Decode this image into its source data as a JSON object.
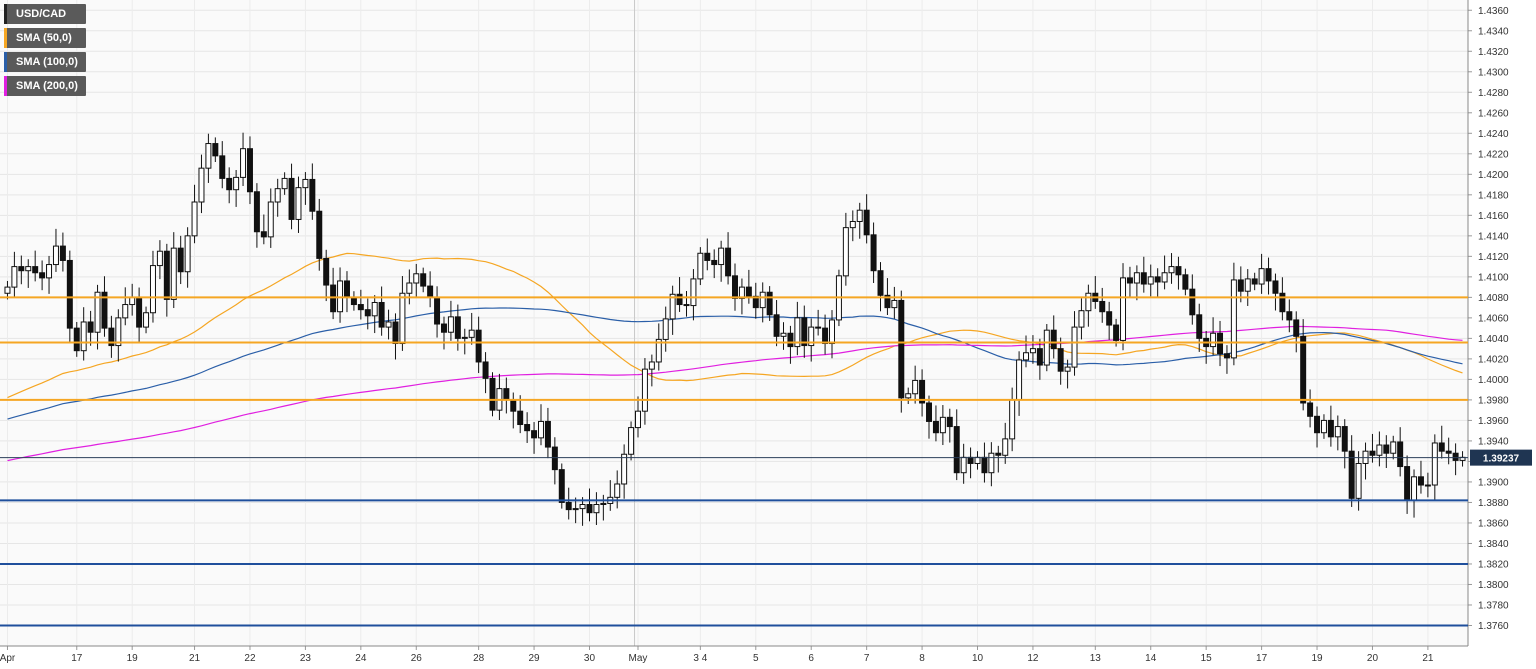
{
  "legend": [
    {
      "label": "USD/CAD",
      "color": "#222222"
    },
    {
      "label": "SMA (50,0)",
      "color": "#f5a623"
    },
    {
      "label": "SMA (100,0)",
      "color": "#2b5fa8"
    },
    {
      "label": "SMA (200,0)",
      "color": "#e020e0"
    }
  ],
  "chart_data": {
    "type": "candlestick",
    "instrument": "USD/CAD",
    "current_price": "1.39237",
    "ylim": [
      1.374,
      1.437
    ],
    "y_ticks": [
      "1.4360",
      "1.4340",
      "1.4320",
      "1.4300",
      "1.4280",
      "1.4260",
      "1.4240",
      "1.4220",
      "1.4200",
      "1.4180",
      "1.4160",
      "1.4140",
      "1.4120",
      "1.4100",
      "1.4080",
      "1.4060",
      "1.4040",
      "1.4020",
      "1.4000",
      "1.3980",
      "1.3960",
      "1.3940",
      "1.3920",
      "1.3900",
      "1.3880",
      "1.3860",
      "1.3840",
      "1.3820",
      "1.3800",
      "1.3780",
      "1.3760"
    ],
    "x_labels": [
      {
        "label": "Apr",
        "i": 0
      },
      {
        "label": "17",
        "i": 10
      },
      {
        "label": "19",
        "i": 18
      },
      {
        "label": "21",
        "i": 27
      },
      {
        "label": "22",
        "i": 35
      },
      {
        "label": "23",
        "i": 43
      },
      {
        "label": "24",
        "i": 51
      },
      {
        "label": "26",
        "i": 59
      },
      {
        "label": "28",
        "i": 68
      },
      {
        "label": "29",
        "i": 76
      },
      {
        "label": "30",
        "i": 84
      },
      {
        "label": "May",
        "i": 91
      },
      {
        "label": "3 4",
        "i": 100
      },
      {
        "label": "5",
        "i": 108
      },
      {
        "label": "6",
        "i": 116
      },
      {
        "label": "7",
        "i": 124
      },
      {
        "label": "8",
        "i": 132
      },
      {
        "label": "10",
        "i": 140
      },
      {
        "label": "12",
        "i": 148
      },
      {
        "label": "13",
        "i": 157
      },
      {
        "label": "14",
        "i": 165
      },
      {
        "label": "15",
        "i": 173
      },
      {
        "label": "17",
        "i": 181
      },
      {
        "label": "19",
        "i": 189
      },
      {
        "label": "20",
        "i": 197
      },
      {
        "label": "21",
        "i": 205
      }
    ],
    "session_separator_index": 91,
    "horizontal_levels": [
      {
        "value": 1.408,
        "color": "#f5a623"
      },
      {
        "value": 1.4036,
        "color": "#f5a623"
      },
      {
        "value": 1.398,
        "color": "#f5a623"
      },
      {
        "value": 1.3882,
        "color": "#1f4f9c"
      },
      {
        "value": 1.382,
        "color": "#1f4f9c"
      },
      {
        "value": 1.376,
        "color": "#1f4f9c"
      }
    ],
    "current_price_value": 1.39237,
    "candle_closes": [
      1.409,
      1.411,
      1.4106,
      1.411,
      1.4104,
      1.4099,
      1.4112,
      1.413,
      1.4116,
      1.405,
      1.4028,
      1.4056,
      1.4046,
      1.4085,
      1.405,
      1.4033,
      1.406,
      1.4073,
      1.408,
      1.4051,
      1.4065,
      1.4111,
      1.4125,
      1.4078,
      1.4128,
      1.4105,
      1.414,
      1.4173,
      1.4206,
      1.423,
      1.4218,
      1.4196,
      1.4185,
      1.4197,
      1.4225,
      1.4183,
      1.4144,
      1.4139,
      1.4173,
      1.4186,
      1.4196,
      1.4156,
      1.4187,
      1.4195,
      1.4164,
      1.4118,
      1.4092,
      1.4066,
      1.4096,
      1.408,
      1.4073,
      1.4068,
      1.4062,
      1.4075,
      1.4051,
      1.4056,
      1.4035,
      1.4084,
      1.4094,
      1.4103,
      1.4091,
      1.408,
      1.4054,
      1.4046,
      1.4061,
      1.404,
      1.4041,
      1.4048,
      1.4017,
      1.4001,
      1.397,
      1.3991,
      1.398,
      1.3969,
      1.3956,
      1.395,
      1.3943,
      1.3959,
      1.3934,
      1.3912,
      1.388,
      1.3873,
      1.3874,
      1.3878,
      1.387,
      1.3878,
      1.3879,
      1.3885,
      1.3898,
      1.3927,
      1.3953,
      1.3969,
      1.401,
      1.4017,
      1.4039,
      1.4059,
      1.4083,
      1.4073,
      1.4072,
      1.4098,
      1.4123,
      1.4116,
      1.4112,
      1.4128,
      1.4101,
      1.4079,
      1.409,
      1.4081,
      1.407,
      1.4085,
      1.4063,
      1.4042,
      1.4045,
      1.4032,
      1.406,
      1.4033,
      1.4051,
      1.405,
      1.4035,
      1.4058,
      1.4101,
      1.4148,
      1.4154,
      1.4165,
      1.4141,
      1.4106,
      1.4082,
      1.407,
      1.4077,
      1.3982,
      1.3986,
      1.3999,
      1.3977,
      1.3959,
      1.3948,
      1.3963,
      1.3954,
      1.3909,
      1.3924,
      1.3918,
      1.3924,
      1.3909,
      1.3928,
      1.3926,
      1.3942,
      1.398,
      1.4019,
      1.4026,
      1.403,
      1.4014,
      1.4048,
      1.403,
      1.4008,
      1.4012,
      1.4051,
      1.4067,
      1.4084,
      1.4076,
      1.4066,
      1.4053,
      1.4038,
      1.4099,
      1.4094,
      1.4104,
      1.4093,
      1.41,
      1.4095,
      1.4104,
      1.411,
      1.4102,
      1.4088,
      1.4063,
      1.404,
      1.4032,
      1.4045,
      1.4025,
      1.4021,
      1.4097,
      1.4086,
      1.4098,
      1.4093,
      1.4108,
      1.4096,
      1.4084,
      1.4066,
      1.4058,
      1.4042,
      1.3977,
      1.3964,
      1.3948,
      1.396,
      1.3944,
      1.3954,
      1.393,
      1.3884,
      1.3918,
      1.393,
      1.3926,
      1.3936,
      1.3928,
      1.3939,
      1.3915,
      1.3882,
      1.3905,
      1.3897,
      1.3897,
      1.3938,
      1.393,
      1.3928,
      1.3921,
      1.3924
    ]
  }
}
